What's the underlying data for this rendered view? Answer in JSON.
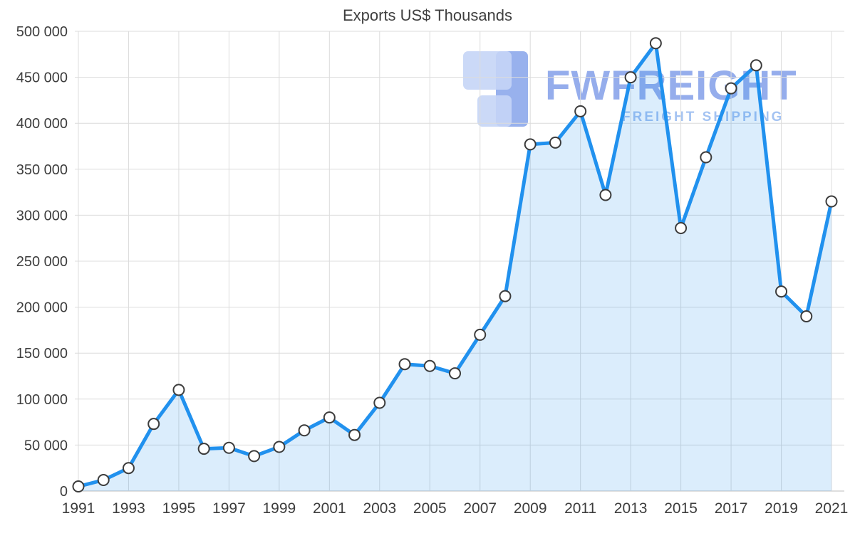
{
  "chart_data": {
    "type": "area",
    "title": "Exports US$ Thousands",
    "x": [
      1991,
      1992,
      1993,
      1994,
      1995,
      1996,
      1997,
      1998,
      1999,
      2000,
      2001,
      2002,
      2003,
      2004,
      2005,
      2006,
      2007,
      2008,
      2009,
      2010,
      2011,
      2012,
      2013,
      2014,
      2015,
      2016,
      2017,
      2018,
      2019,
      2020,
      2021
    ],
    "values": [
      5000,
      12000,
      25000,
      73000,
      110000,
      46000,
      47000,
      38000,
      48000,
      66000,
      80000,
      61000,
      96000,
      138000,
      136000,
      128000,
      170000,
      212000,
      377000,
      379000,
      413000,
      322000,
      450000,
      487000,
      286000,
      363000,
      438000,
      463000,
      217000,
      190000,
      315000
    ],
    "ylim": [
      0,
      500000
    ],
    "y_tick_step": 50000,
    "y_tick_labels": [
      "0",
      "50 000",
      "100 000",
      "150 000",
      "200 000",
      "250 000",
      "300 000",
      "350 000",
      "400 000",
      "450 000",
      "500 000"
    ],
    "x_tick_labels": [
      "1991",
      "1993",
      "1995",
      "1997",
      "1999",
      "2001",
      "2003",
      "2005",
      "2007",
      "2009",
      "2011",
      "2013",
      "2015",
      "2017",
      "2019",
      "2021"
    ],
    "grid": true,
    "legend": "none",
    "colors": {
      "line": "#2191ee",
      "fill": "rgba(33,145,238,0.16)",
      "marker_fill": "#ffffff",
      "marker_stroke": "#3c3c3c",
      "grid": "#dcdcdc",
      "axis": "#bdbdbd",
      "label": "#3d3d3d",
      "title": "#3f3f3f"
    }
  },
  "watermark": {
    "brand": "FWFREIGHT",
    "tagline": "FREIGHT SHIPPING"
  }
}
